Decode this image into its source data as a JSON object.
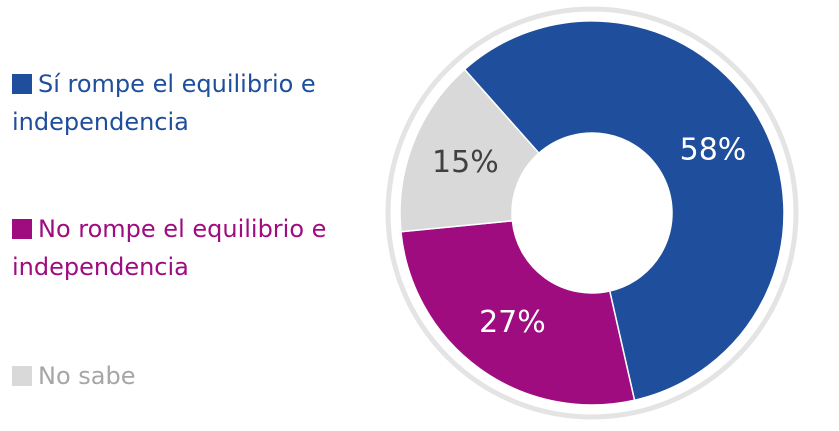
{
  "chart_data": {
    "type": "donut",
    "categories": [
      "Sí rompe el equilibrio e independencia",
      "No rompe el equilibrio e independencia",
      "No sabe"
    ],
    "values": [
      58,
      27,
      15
    ],
    "value_labels": [
      "58%",
      "27%",
      "15%"
    ],
    "colors": [
      "#1f4e9c",
      "#9e0c80",
      "#d9d9d9"
    ],
    "legend_text_colors": [
      "#1f4e9c",
      "#9e0c80",
      "#a6a6a6"
    ],
    "label_colors": [
      "#ffffff",
      "#ffffff",
      "#404040"
    ],
    "legend": "left"
  }
}
